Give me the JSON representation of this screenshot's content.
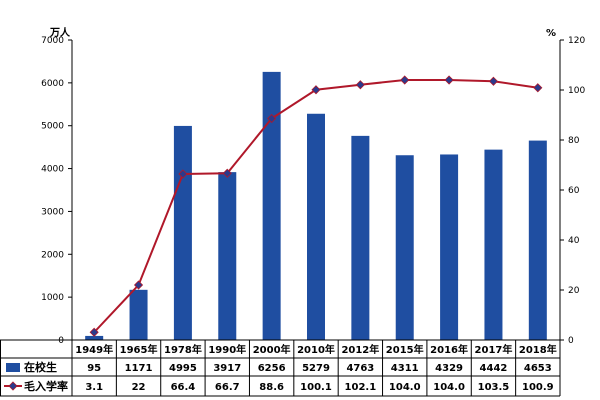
{
  "chart_data": {
    "type": "bar",
    "categories": [
      "1949年",
      "1965年",
      "1978年",
      "1990年",
      "2000年",
      "2010年",
      "2012年",
      "2015年",
      "2016年",
      "2017年",
      "2018年"
    ],
    "series": [
      {
        "name": "在校生",
        "type": "bar",
        "axis": "left",
        "values": [
          95,
          1171,
          4995,
          3917,
          6256,
          5279,
          4763,
          4311,
          4329,
          4442,
          4653
        ],
        "labels": [
          "95",
          "1171",
          "4995",
          "3917",
          "6256",
          "5279",
          "4763",
          "4311",
          "4329",
          "4442",
          "4653"
        ],
        "color": "#1f4ea1"
      },
      {
        "name": "毛入学率",
        "type": "line",
        "axis": "right",
        "values": [
          3.1,
          22,
          66.4,
          66.7,
          88.6,
          100.1,
          102.1,
          104.0,
          104.0,
          103.5,
          100.9
        ],
        "labels": [
          "3.1",
          "22",
          "66.4",
          "66.7",
          "88.6",
          "100.1",
          "102.1",
          "104.0",
          "104.0",
          "103.5",
          "100.9"
        ],
        "color": "#b0182a",
        "marker_color": "#2b3a8c"
      }
    ],
    "y_left": {
      "unit": "万人",
      "ylim": [
        0,
        7000
      ],
      "ticks": [
        "0",
        "1000",
        "2000",
        "3000",
        "4000",
        "5000",
        "6000",
        "7000"
      ]
    },
    "y_right": {
      "unit": "%",
      "ylim": [
        0,
        120
      ],
      "ticks": [
        "0",
        "20",
        "40",
        "60",
        "80",
        "100",
        "120"
      ]
    },
    "grid": false,
    "legend": "bottom-table"
  }
}
